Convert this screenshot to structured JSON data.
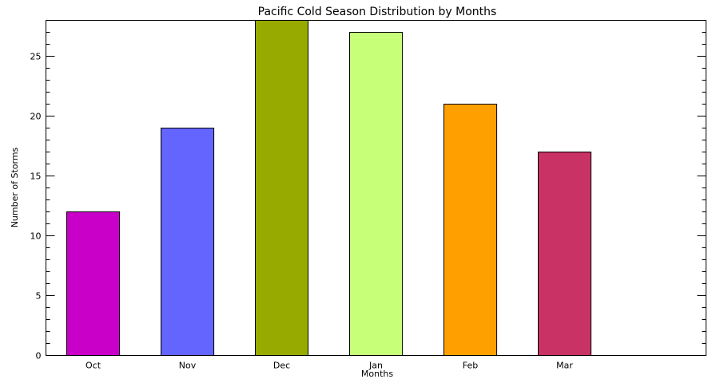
{
  "chart_data": {
    "type": "bar",
    "title": "Pacific Cold Season Distribution by Months",
    "xlabel": "Months",
    "ylabel": "Number of Storms",
    "categories": [
      "Oct",
      "Nov",
      "Dec",
      "Jan",
      "Feb",
      "Mar"
    ],
    "values": [
      12,
      19,
      28,
      27,
      21,
      17
    ],
    "colors": [
      "#c800c8",
      "#6464ff",
      "#96aa00",
      "#c8ff78",
      "#ffa000",
      "#c83264"
    ],
    "ylim": [
      0,
      28
    ],
    "xlim": [
      -0.5,
      6.5
    ],
    "yticks_major": [
      0,
      5,
      10,
      15,
      20,
      25
    ],
    "yticks_major_labels": [
      "0",
      "5",
      "10",
      "15",
      "20",
      "25"
    ],
    "ytick_minor_step": 1,
    "grid": false,
    "legend": "none"
  }
}
